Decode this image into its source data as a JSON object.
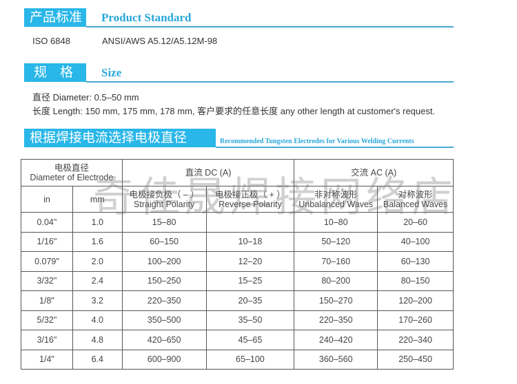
{
  "product_standard": {
    "title_cn": "产品标准",
    "title_en": "Product Standard",
    "items": [
      "ISO 6848",
      "ANSI/AWS A5.12/A5.12M-98"
    ]
  },
  "size": {
    "title_cn": "规　格",
    "title_en": "Size",
    "diameter": "直径 Diameter:  0.5–50 mm",
    "length": "长度 Length:  150 mm, 175 mm, 178 mm, 客户要求的任意长度 any other length at customer's request."
  },
  "current": {
    "title_cn": "根据焊接电流选择电极直径",
    "title_en": "Recommended Tungsten Electrodes for Various Welding Currents"
  },
  "table": {
    "diameter_cn": "电极直径",
    "diameter_en": "Diameter of Electrode",
    "dc": "直流 DC (A)",
    "ac": "交流 AC (A)",
    "in": "in",
    "mm": "mm",
    "straight_cn": "电极接负极（ – ）",
    "straight_en": "Straight Polarity",
    "reverse_cn": "电极接正极（ + ）",
    "reverse_en": "Reverse Polarity",
    "unbal_cn": "非对称波形",
    "unbal_en": "Unbalanced Waves",
    "bal_cn": "对称波形",
    "bal_en": "Balanced Waves",
    "rows": [
      [
        "0.04\"",
        "1.0",
        "15–80",
        "",
        "10–80",
        "20–60"
      ],
      [
        "1/16\"",
        "1.6",
        "60–150",
        "10–18",
        "50–120",
        "40–100"
      ],
      [
        "0.079\"",
        "2.0",
        "100–200",
        "12–20",
        "70–160",
        "60–130"
      ],
      [
        "3/32\"",
        "2.4",
        "150–250",
        "15–25",
        "80–200",
        "80–150"
      ],
      [
        "1/8\"",
        "3.2",
        "220–350",
        "20–35",
        "150–270",
        "120–200"
      ],
      [
        "5/32\"",
        "4.0",
        "350–500",
        "35–50",
        "220–350",
        "170–260"
      ],
      [
        "3/16\"",
        "4.8",
        "420–650",
        "45–65",
        "240–420",
        "220–340"
      ],
      [
        "1/4\"",
        "6.4",
        "600–900",
        "65–100",
        "360–560",
        "250–450"
      ]
    ]
  },
  "watermark": "奇佳晟焊接网络店",
  "colors": {
    "accent": "#29b6e8",
    "border": "#555555"
  }
}
